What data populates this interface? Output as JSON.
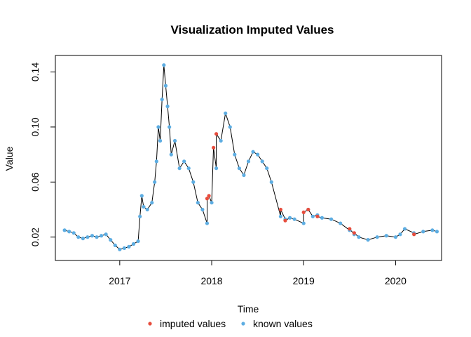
{
  "chart_data": {
    "type": "line",
    "title": "Visualization Imputed Values",
    "xlabel": "Time",
    "ylabel": "Value",
    "xlim": [
      2016.3,
      2020.5
    ],
    "ylim": [
      0.003,
      0.152
    ],
    "x_ticks": [
      2017,
      2018,
      2019,
      2020
    ],
    "x_tick_labels": [
      "2017",
      "2018",
      "2019",
      "2020"
    ],
    "y_ticks": [
      0.02,
      0.06,
      0.1,
      0.14
    ],
    "y_tick_labels": [
      "0.02",
      "0.06",
      "0.10",
      "0.14"
    ],
    "grid": false,
    "legend": "bottom",
    "series": [
      {
        "name": "known values",
        "color": "#5dade2",
        "points": [
          [
            2016.4,
            0.025
          ],
          [
            2016.45,
            0.024
          ],
          [
            2016.5,
            0.023
          ],
          [
            2016.55,
            0.02
          ],
          [
            2016.6,
            0.019
          ],
          [
            2016.65,
            0.02
          ],
          [
            2016.7,
            0.021
          ],
          [
            2016.75,
            0.02
          ],
          [
            2016.8,
            0.021
          ],
          [
            2016.85,
            0.022
          ],
          [
            2016.9,
            0.018
          ],
          [
            2016.95,
            0.014
          ],
          [
            2017.0,
            0.011
          ],
          [
            2017.05,
            0.012
          ],
          [
            2017.1,
            0.013
          ],
          [
            2017.15,
            0.015
          ],
          [
            2017.2,
            0.017
          ],
          [
            2017.22,
            0.035
          ],
          [
            2017.24,
            0.05
          ],
          [
            2017.26,
            0.042
          ],
          [
            2017.3,
            0.04
          ],
          [
            2017.35,
            0.045
          ],
          [
            2017.38,
            0.06
          ],
          [
            2017.4,
            0.075
          ],
          [
            2017.42,
            0.1
          ],
          [
            2017.44,
            0.09
          ],
          [
            2017.46,
            0.12
          ],
          [
            2017.48,
            0.145
          ],
          [
            2017.5,
            0.13
          ],
          [
            2017.52,
            0.115
          ],
          [
            2017.54,
            0.1
          ],
          [
            2017.56,
            0.08
          ],
          [
            2017.6,
            0.09
          ],
          [
            2017.65,
            0.07
          ],
          [
            2017.7,
            0.075
          ],
          [
            2017.75,
            0.07
          ],
          [
            2017.8,
            0.06
          ],
          [
            2017.85,
            0.045
          ],
          [
            2017.9,
            0.04
          ],
          [
            2017.95,
            0.03
          ],
          [
            2018.0,
            0.045
          ],
          [
            2018.05,
            0.07
          ],
          [
            2018.1,
            0.09
          ],
          [
            2018.15,
            0.11
          ],
          [
            2018.2,
            0.1
          ],
          [
            2018.25,
            0.08
          ],
          [
            2018.3,
            0.07
          ],
          [
            2018.35,
            0.065
          ],
          [
            2018.4,
            0.075
          ],
          [
            2018.45,
            0.082
          ],
          [
            2018.5,
            0.08
          ],
          [
            2018.55,
            0.075
          ],
          [
            2018.6,
            0.07
          ],
          [
            2018.65,
            0.06
          ],
          [
            2018.75,
            0.035
          ],
          [
            2018.8,
            0.033
          ],
          [
            2018.85,
            0.034
          ],
          [
            2018.9,
            0.033
          ],
          [
            2019.0,
            0.03
          ],
          [
            2019.05,
            0.04
          ],
          [
            2019.1,
            0.035
          ],
          [
            2019.15,
            0.036
          ],
          [
            2019.2,
            0.034
          ],
          [
            2019.3,
            0.033
          ],
          [
            2019.4,
            0.03
          ],
          [
            2019.5,
            0.025
          ],
          [
            2019.55,
            0.022
          ],
          [
            2019.6,
            0.02
          ],
          [
            2019.7,
            0.018
          ],
          [
            2019.8,
            0.02
          ],
          [
            2019.9,
            0.021
          ],
          [
            2020.0,
            0.02
          ],
          [
            2020.05,
            0.022
          ],
          [
            2020.1,
            0.026
          ],
          [
            2020.2,
            0.023
          ],
          [
            2020.3,
            0.024
          ],
          [
            2020.4,
            0.025
          ],
          [
            2020.45,
            0.024
          ]
        ]
      },
      {
        "name": "imputed values",
        "color": "#e74c3c",
        "points": [
          [
            2017.95,
            0.048
          ],
          [
            2017.97,
            0.05
          ],
          [
            2018.02,
            0.085
          ],
          [
            2018.05,
            0.095
          ],
          [
            2018.75,
            0.04
          ],
          [
            2018.8,
            0.032
          ],
          [
            2019.0,
            0.038
          ],
          [
            2019.05,
            0.04
          ],
          [
            2019.15,
            0.035
          ],
          [
            2019.5,
            0.026
          ],
          [
            2019.55,
            0.023
          ],
          [
            2020.2,
            0.022
          ]
        ]
      }
    ]
  }
}
